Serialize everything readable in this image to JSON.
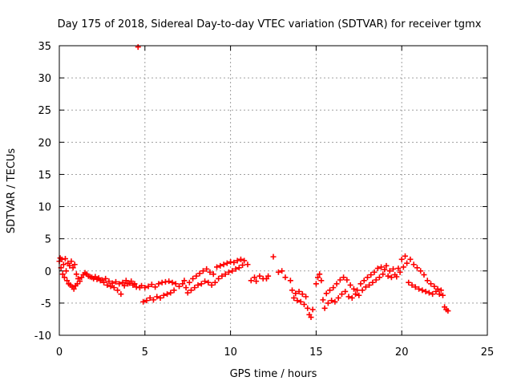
{
  "chart_data": {
    "type": "scatter",
    "title": "Day 175 of 2018, Sidereal Day-to-day VTEC variation (SDTVAR) for receiver tgmx",
    "xlabel": "GPS time / hours",
    "ylabel": "SDTVAR / TECUs",
    "xlim": [
      0,
      25
    ],
    "ylim": [
      -10,
      35
    ],
    "xticks": [
      0,
      5,
      10,
      15,
      20,
      25
    ],
    "yticks": [
      -10,
      -5,
      0,
      5,
      10,
      15,
      20,
      25,
      30,
      35
    ],
    "grid": true,
    "marker": "+",
    "color": "#ff0000",
    "series": [
      {
        "name": "SDTVAR",
        "points": [
          [
            0.0,
            1.5
          ],
          [
            0.05,
            2.0
          ],
          [
            0.1,
            0.5
          ],
          [
            0.15,
            1.8
          ],
          [
            0.2,
            -0.5
          ],
          [
            0.25,
            1.0
          ],
          [
            0.3,
            -1.0
          ],
          [
            0.35,
            1.9
          ],
          [
            0.4,
            0.0
          ],
          [
            0.45,
            -1.5
          ],
          [
            0.5,
            1.2
          ],
          [
            0.55,
            -2.0
          ],
          [
            0.6,
            0.8
          ],
          [
            0.65,
            -2.2
          ],
          [
            0.7,
            1.5
          ],
          [
            0.75,
            -2.5
          ],
          [
            0.8,
            0.5
          ],
          [
            0.85,
            -2.8
          ],
          [
            0.9,
            1.0
          ],
          [
            0.95,
            -2.3
          ],
          [
            1.0,
            -0.5
          ],
          [
            1.05,
            -2.0
          ],
          [
            1.1,
            -1.2
          ],
          [
            1.2,
            -1.6
          ],
          [
            1.3,
            -1.0
          ],
          [
            1.4,
            -0.6
          ],
          [
            1.5,
            -0.3
          ],
          [
            1.6,
            -0.5
          ],
          [
            1.7,
            -0.8
          ],
          [
            1.8,
            -0.9
          ],
          [
            1.9,
            -1.0
          ],
          [
            2.0,
            -1.2
          ],
          [
            2.1,
            -0.9
          ],
          [
            2.2,
            -1.3
          ],
          [
            2.3,
            -1.1
          ],
          [
            2.4,
            -1.5
          ],
          [
            2.5,
            -1.4
          ],
          [
            2.6,
            -1.8
          ],
          [
            2.7,
            -1.2
          ],
          [
            2.8,
            -2.2
          ],
          [
            2.9,
            -1.6
          ],
          [
            3.0,
            -2.4
          ],
          [
            3.1,
            -1.9
          ],
          [
            3.2,
            -2.6
          ],
          [
            3.3,
            -1.7
          ],
          [
            3.4,
            -3.0
          ],
          [
            3.5,
            -2.0
          ],
          [
            3.6,
            -3.6
          ],
          [
            3.7,
            -1.8
          ],
          [
            3.8,
            -2.3
          ],
          [
            3.9,
            -1.5
          ],
          [
            4.0,
            -2.0
          ],
          [
            4.1,
            -1.9
          ],
          [
            4.2,
            -1.6
          ],
          [
            4.3,
            -2.2
          ],
          [
            4.4,
            -2.0
          ],
          [
            4.5,
            -2.5
          ],
          [
            4.6,
            34.8
          ],
          [
            4.7,
            -2.6
          ],
          [
            4.8,
            -2.3
          ],
          [
            4.9,
            -4.8
          ],
          [
            5.0,
            -2.6
          ],
          [
            5.1,
            -4.6
          ],
          [
            5.2,
            -2.4
          ],
          [
            5.3,
            -4.2
          ],
          [
            5.4,
            -2.1
          ],
          [
            5.5,
            -4.5
          ],
          [
            5.6,
            -2.5
          ],
          [
            5.7,
            -4.0
          ],
          [
            5.8,
            -2.0
          ],
          [
            5.9,
            -4.2
          ],
          [
            6.0,
            -1.8
          ],
          [
            6.1,
            -3.8
          ],
          [
            6.2,
            -1.7
          ],
          [
            6.3,
            -3.6
          ],
          [
            6.4,
            -1.6
          ],
          [
            6.5,
            -3.4
          ],
          [
            6.6,
            -1.8
          ],
          [
            6.7,
            -3.0
          ],
          [
            6.8,
            -2.0
          ],
          [
            7.0,
            -2.4
          ],
          [
            7.2,
            -2.0
          ],
          [
            7.3,
            -1.5
          ],
          [
            7.4,
            -2.6
          ],
          [
            7.5,
            -3.4
          ],
          [
            7.6,
            -1.8
          ],
          [
            7.7,
            -3.0
          ],
          [
            7.8,
            -1.2
          ],
          [
            7.9,
            -2.6
          ],
          [
            8.0,
            -0.8
          ],
          [
            8.1,
            -2.2
          ],
          [
            8.2,
            -0.4
          ],
          [
            8.3,
            -2.0
          ],
          [
            8.4,
            0.0
          ],
          [
            8.5,
            -1.6
          ],
          [
            8.6,
            0.3
          ],
          [
            8.7,
            -1.8
          ],
          [
            8.8,
            -0.2
          ],
          [
            8.9,
            -2.2
          ],
          [
            9.0,
            -0.5
          ],
          [
            9.1,
            -1.8
          ],
          [
            9.2,
            0.6
          ],
          [
            9.3,
            -1.2
          ],
          [
            9.4,
            0.8
          ],
          [
            9.5,
            -0.8
          ],
          [
            9.6,
            1.0
          ],
          [
            9.7,
            -0.5
          ],
          [
            9.8,
            1.2
          ],
          [
            9.9,
            -0.2
          ],
          [
            10.0,
            1.4
          ],
          [
            10.1,
            0.0
          ],
          [
            10.2,
            1.3
          ],
          [
            10.3,
            0.3
          ],
          [
            10.4,
            1.6
          ],
          [
            10.5,
            0.5
          ],
          [
            10.6,
            1.8
          ],
          [
            10.7,
            0.9
          ],
          [
            10.8,
            1.6
          ],
          [
            11.0,
            1.0
          ],
          [
            11.2,
            -1.5
          ],
          [
            11.4,
            -1.0
          ],
          [
            11.5,
            -1.6
          ],
          [
            11.7,
            -0.8
          ],
          [
            11.9,
            -1.2
          ],
          [
            12.1,
            -1.2
          ],
          [
            12.2,
            -0.8
          ],
          [
            12.5,
            2.2
          ],
          [
            12.8,
            -0.2
          ],
          [
            13.0,
            0.0
          ],
          [
            13.2,
            -1.0
          ],
          [
            13.5,
            -1.5
          ],
          [
            13.6,
            -3.0
          ],
          [
            13.7,
            -4.2
          ],
          [
            13.8,
            -3.5
          ],
          [
            13.9,
            -4.6
          ],
          [
            14.0,
            -3.2
          ],
          [
            14.1,
            -4.8
          ],
          [
            14.2,
            -3.6
          ],
          [
            14.3,
            -5.2
          ],
          [
            14.4,
            -4.0
          ],
          [
            14.5,
            -5.8
          ],
          [
            14.6,
            -6.8
          ],
          [
            14.7,
            -7.2
          ],
          [
            14.8,
            -6.0
          ],
          [
            15.0,
            -2.0
          ],
          [
            15.1,
            -1.0
          ],
          [
            15.2,
            -0.5
          ],
          [
            15.3,
            -1.5
          ],
          [
            15.4,
            -4.5
          ],
          [
            15.5,
            -5.8
          ],
          [
            15.6,
            -3.5
          ],
          [
            15.7,
            -5.0
          ],
          [
            15.8,
            -3.0
          ],
          [
            15.9,
            -4.6
          ],
          [
            16.0,
            -2.6
          ],
          [
            16.1,
            -4.8
          ],
          [
            16.2,
            -2.0
          ],
          [
            16.3,
            -4.2
          ],
          [
            16.4,
            -1.4
          ],
          [
            16.5,
            -3.6
          ],
          [
            16.6,
            -1.0
          ],
          [
            16.7,
            -3.2
          ],
          [
            16.8,
            -1.4
          ],
          [
            16.9,
            -4.0
          ],
          [
            17.0,
            -2.2
          ],
          [
            17.1,
            -4.2
          ],
          [
            17.2,
            -2.8
          ],
          [
            17.3,
            -3.6
          ],
          [
            17.4,
            -3.0
          ],
          [
            17.5,
            -3.8
          ],
          [
            17.6,
            -2.0
          ],
          [
            17.7,
            -3.0
          ],
          [
            17.8,
            -1.5
          ],
          [
            17.9,
            -2.5
          ],
          [
            18.0,
            -1.0
          ],
          [
            18.1,
            -2.2
          ],
          [
            18.2,
            -0.6
          ],
          [
            18.3,
            -1.8
          ],
          [
            18.4,
            -0.2
          ],
          [
            18.5,
            -1.4
          ],
          [
            18.6,
            0.4
          ],
          [
            18.7,
            -1.0
          ],
          [
            18.8,
            0.6
          ],
          [
            18.9,
            -0.5
          ],
          [
            19.0,
            0.2
          ],
          [
            19.1,
            0.8
          ],
          [
            19.2,
            -0.8
          ],
          [
            19.3,
            0.0
          ],
          [
            19.4,
            -1.0
          ],
          [
            19.5,
            0.3
          ],
          [
            19.6,
            -0.6
          ],
          [
            19.7,
            -0.9
          ],
          [
            19.8,
            0.4
          ],
          [
            19.9,
            -0.2
          ],
          [
            20.0,
            1.8
          ],
          [
            20.1,
            0.6
          ],
          [
            20.2,
            2.3
          ],
          [
            20.3,
            1.2
          ],
          [
            20.4,
            -1.8
          ],
          [
            20.5,
            1.8
          ],
          [
            20.6,
            -2.2
          ],
          [
            20.7,
            1.0
          ],
          [
            20.8,
            -2.5
          ],
          [
            20.9,
            0.5
          ],
          [
            21.0,
            -2.8
          ],
          [
            21.1,
            0.0
          ],
          [
            21.2,
            -3.0
          ],
          [
            21.3,
            -0.6
          ],
          [
            21.4,
            -3.2
          ],
          [
            21.5,
            -1.5
          ],
          [
            21.6,
            -3.4
          ],
          [
            21.7,
            -2.0
          ],
          [
            21.8,
            -3.6
          ],
          [
            21.9,
            -2.4
          ],
          [
            22.0,
            -3.2
          ],
          [
            22.1,
            -2.8
          ],
          [
            22.2,
            -3.6
          ],
          [
            22.3,
            -3.0
          ],
          [
            22.4,
            -3.8
          ],
          [
            22.5,
            -5.6
          ],
          [
            22.6,
            -6.0
          ],
          [
            22.7,
            -6.2
          ]
        ]
      }
    ]
  }
}
